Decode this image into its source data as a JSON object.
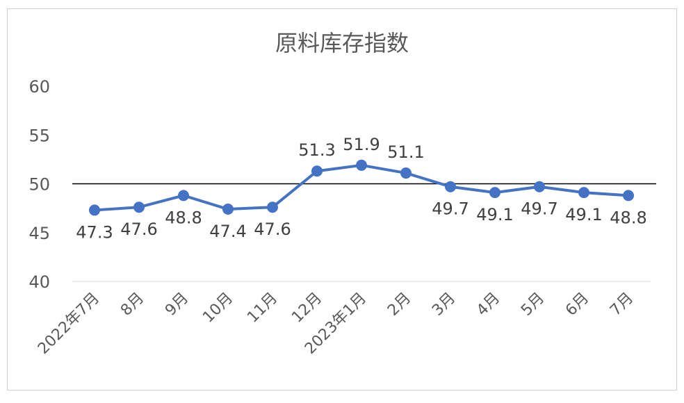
{
  "chart_data": {
    "type": "line",
    "title": "原料库存指数",
    "categories": [
      "2022年7月",
      "8月",
      "9月",
      "10月",
      "11月",
      "12月",
      "2023年1月",
      "2月",
      "3月",
      "4月",
      "5月",
      "6月",
      "7月"
    ],
    "series": [
      {
        "values": [
          47.3,
          47.6,
          48.8,
          47.4,
          47.6,
          51.3,
          51.9,
          51.1,
          49.7,
          49.1,
          49.7,
          49.1,
          48.8
        ]
      }
    ],
    "data_labels": [
      "47.3",
      "47.6",
      "48.8",
      "47.4",
      "47.6",
      "51.3",
      "51.9",
      "51.1",
      "49.7",
      "49.1",
      "49.7",
      "49.1",
      "48.8"
    ],
    "yticks": [
      40,
      45,
      50,
      55,
      60
    ],
    "ylim": [
      40,
      60
    ],
    "reference_line": 50,
    "line_color": "#4472c4",
    "reference_color": "#000000",
    "grid": false,
    "legend": "none"
  }
}
